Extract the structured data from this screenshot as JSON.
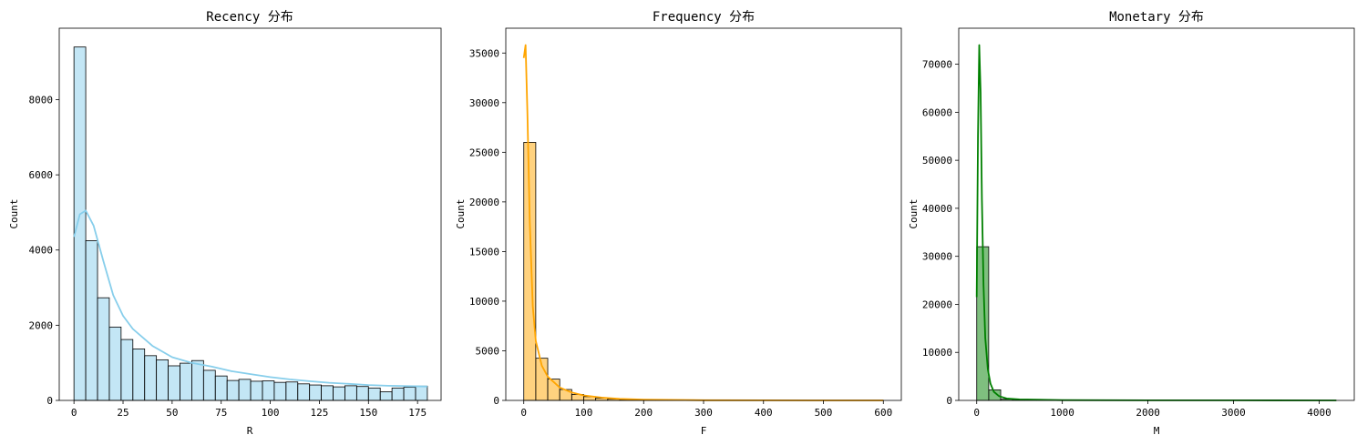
{
  "chart_data": [
    {
      "type": "bar",
      "title": "Recency 分布",
      "xlabel": "R",
      "ylabel": "Count",
      "bins": 30,
      "xlim": [
        -7.5,
        187.0
      ],
      "ylim": [
        0,
        9900
      ],
      "x_bin_range": [
        0,
        180
      ],
      "xticks": [
        0,
        25,
        50,
        75,
        100,
        125,
        150,
        175
      ],
      "yticks": [
        0,
        2000,
        4000,
        6000,
        8000
      ],
      "values": [
        9400,
        4250,
        2730,
        1950,
        1620,
        1370,
        1190,
        1080,
        920,
        990,
        1060,
        800,
        650,
        530,
        560,
        510,
        520,
        480,
        490,
        440,
        410,
        390,
        360,
        390,
        370,
        330,
        230,
        330,
        350,
        380
      ],
      "kde_x": [
        0,
        3,
        6,
        10,
        15,
        20,
        25,
        30,
        40,
        50,
        60,
        70,
        80,
        90,
        100,
        110,
        120,
        130,
        140,
        150,
        160,
        170,
        180
      ],
      "kde_y": [
        4350,
        4950,
        5050,
        4650,
        3700,
        2800,
        2250,
        1900,
        1450,
        1150,
        1000,
        900,
        780,
        700,
        620,
        560,
        510,
        470,
        440,
        410,
        390,
        380,
        370
      ],
      "bar_color": "#87CEEB",
      "line_color": "#87CEEB"
    },
    {
      "type": "bar",
      "title": "Frequency 分布",
      "xlabel": "F",
      "ylabel": "Count",
      "bins": 30,
      "xlim": [
        -30,
        630
      ],
      "ylim": [
        0,
        37500
      ],
      "x_bin_range": [
        0,
        600
      ],
      "xticks": [
        0,
        100,
        200,
        300,
        400,
        500,
        600
      ],
      "yticks": [
        0,
        5000,
        10000,
        15000,
        20000,
        25000,
        30000,
        35000
      ],
      "values": [
        26000,
        4250,
        2150,
        1100,
        600,
        380,
        220,
        140,
        90,
        60,
        40,
        30,
        20,
        15,
        10,
        8,
        6,
        5,
        4,
        3,
        3,
        2,
        2,
        2,
        1,
        1,
        1,
        1,
        1,
        1
      ],
      "kde_x": [
        0,
        3,
        6,
        10,
        15,
        20,
        30,
        40,
        60,
        80,
        100,
        130,
        160,
        200,
        300,
        400,
        500,
        600
      ],
      "kde_y": [
        34500,
        35800,
        29000,
        18000,
        9500,
        6000,
        3500,
        2400,
        1300,
        800,
        500,
        280,
        160,
        80,
        20,
        8,
        4,
        2
      ],
      "bar_color": "#FFA500",
      "line_color": "#FFA500"
    },
    {
      "type": "bar",
      "title": "Monetary 分布",
      "xlabel": "M",
      "ylabel": "Count",
      "bins": 30,
      "xlim": [
        -210,
        4410
      ],
      "ylim": [
        0,
        77500
      ],
      "x_bin_range": [
        0,
        4200
      ],
      "xticks": [
        0,
        1000,
        2000,
        3000,
        4000
      ],
      "yticks": [
        0,
        10000,
        20000,
        30000,
        40000,
        50000,
        60000,
        70000
      ],
      "values": [
        32000,
        2200,
        250,
        80,
        40,
        20,
        10,
        5,
        3,
        2,
        1,
        1,
        1,
        1,
        1,
        1,
        1,
        1,
        1,
        1,
        1,
        1,
        1,
        1,
        1,
        1,
        1,
        1,
        1,
        1
      ],
      "kde_x": [
        0,
        15,
        30,
        45,
        60,
        80,
        100,
        130,
        160,
        200,
        260,
        350,
        500,
        1000,
        2000,
        3000,
        4200
      ],
      "kde_y": [
        21500,
        55000,
        74000,
        64000,
        42000,
        24000,
        13000,
        6500,
        3500,
        1800,
        900,
        400,
        200,
        60,
        20,
        10,
        5
      ],
      "bar_color": "#008000",
      "line_color": "#008000"
    }
  ]
}
